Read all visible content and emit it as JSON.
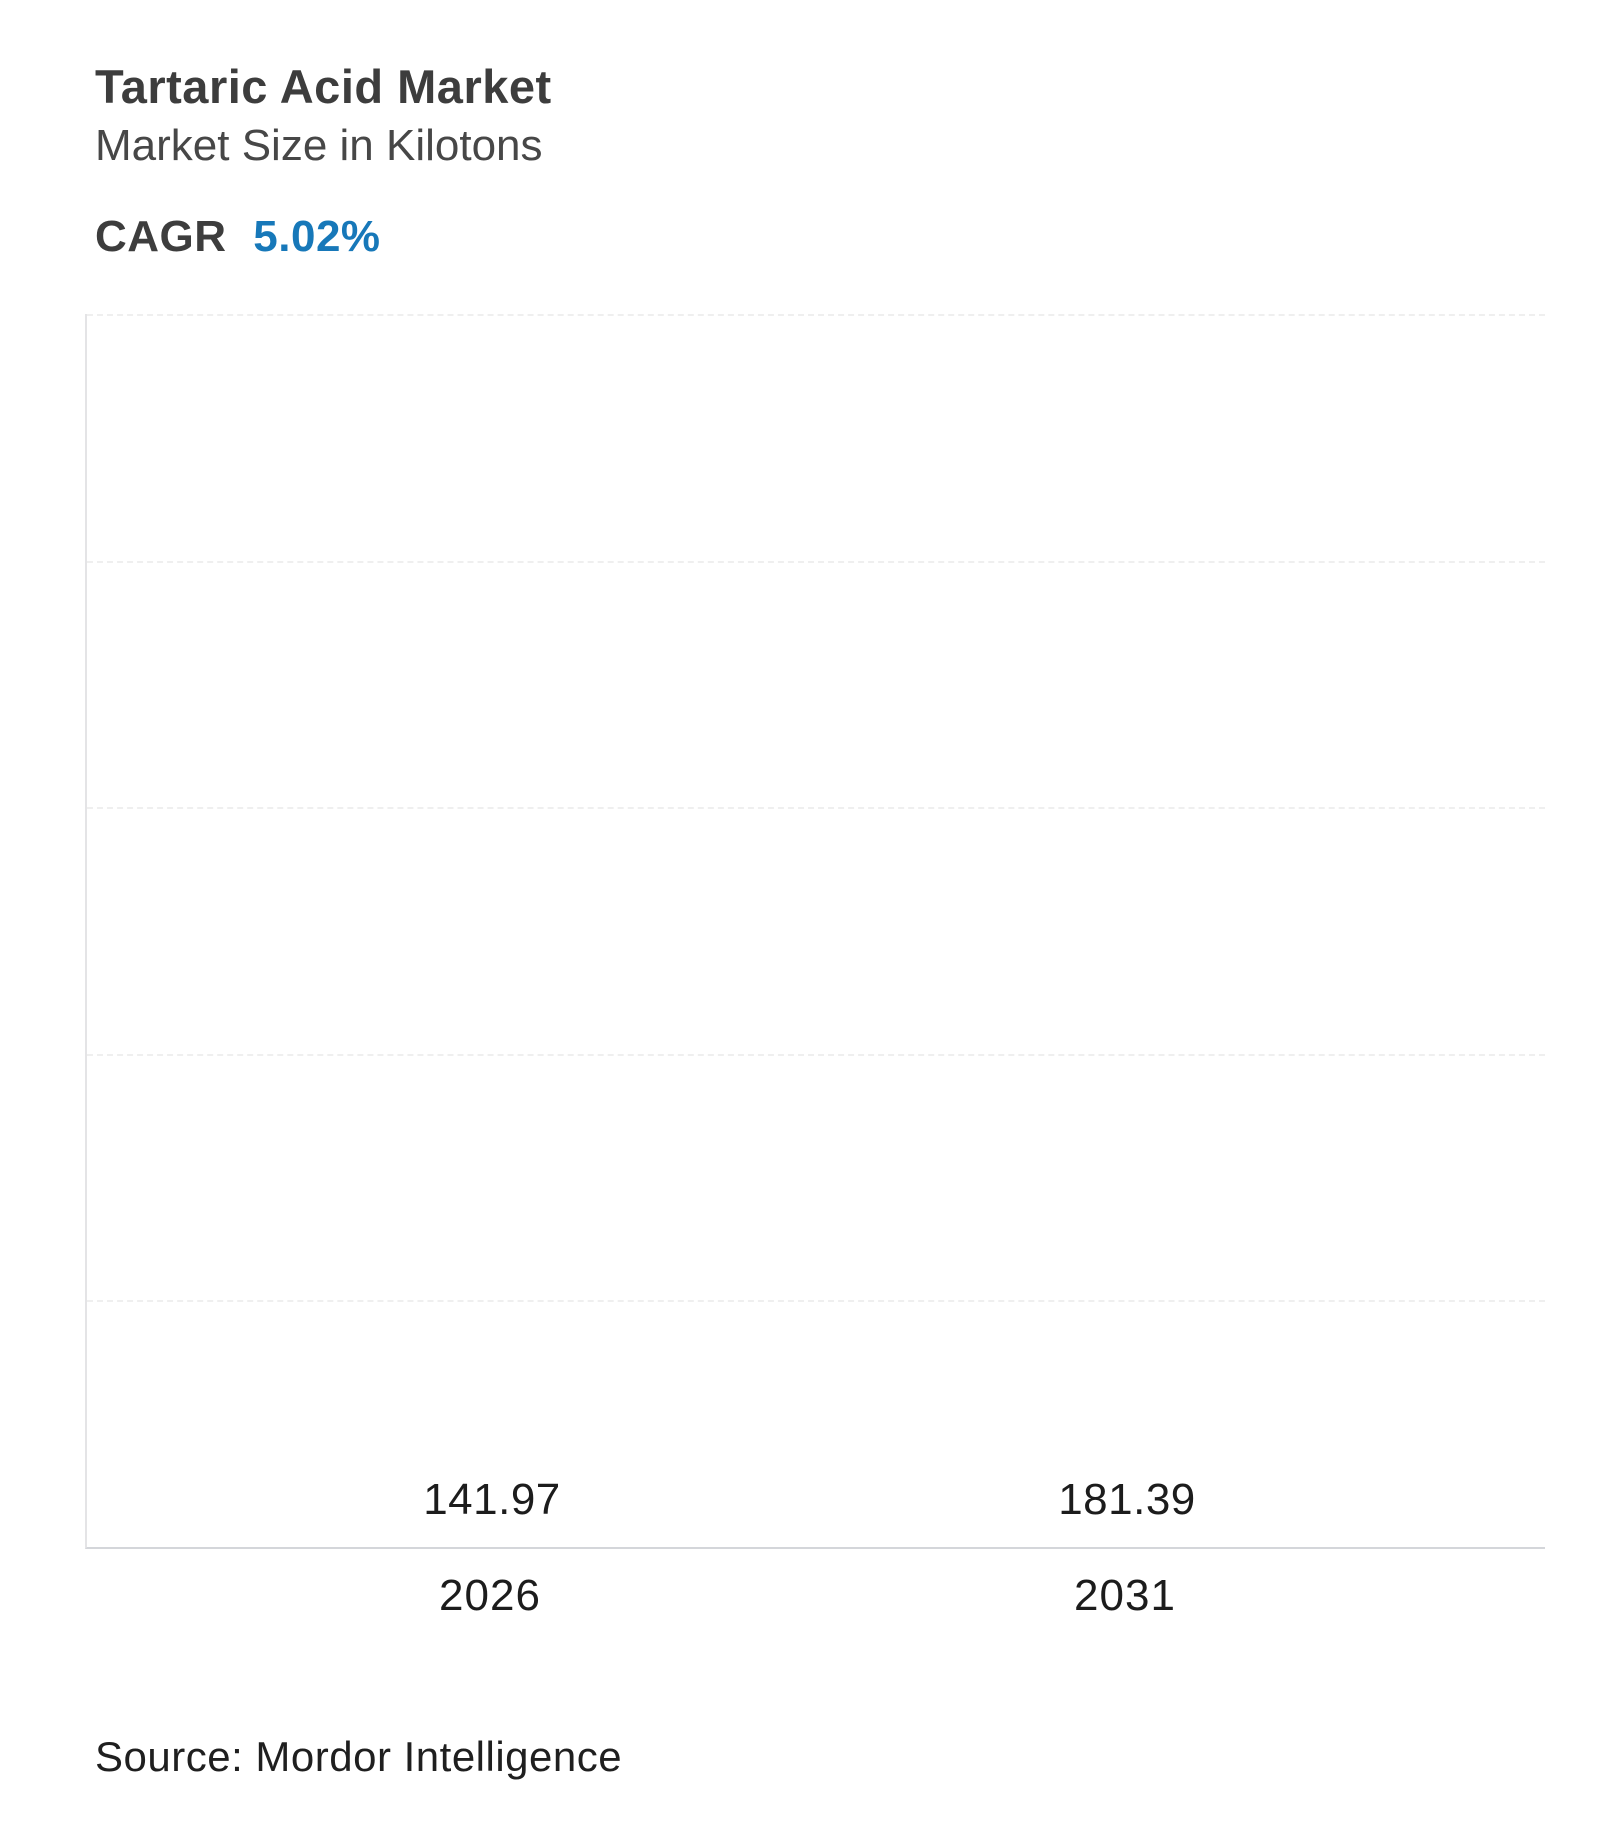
{
  "header": {
    "title": "Tartaric Acid Market",
    "subtitle": "Market Size in Kilotons",
    "cagr_label": "CAGR",
    "cagr_value": "5.02%"
  },
  "chart_data": {
    "type": "bar",
    "categories": [
      "2026",
      "2031"
    ],
    "values": [
      141.97,
      181.39
    ],
    "value_labels": [
      "141.97",
      "181.39"
    ],
    "title": "Tartaric Acid Market",
    "subtitle": "Market Size in Kilotons",
    "xlabel": "",
    "ylabel": "Market Size in Kilotons",
    "ylim": [
      0,
      225
    ],
    "grid": "horizontal-dashed",
    "legend": "none",
    "bar_gradient_top": "#4f94bf",
    "bar_gradient_bottom": "#3ed1d4"
  },
  "footer": {
    "source": "Source: Mordor Intelligence"
  },
  "colors": {
    "accent_blue": "#1778b9",
    "heading": "#3d3d3d",
    "text": "#1f1f1f",
    "gridline": "#efefef",
    "axis": "#d4d6da"
  }
}
